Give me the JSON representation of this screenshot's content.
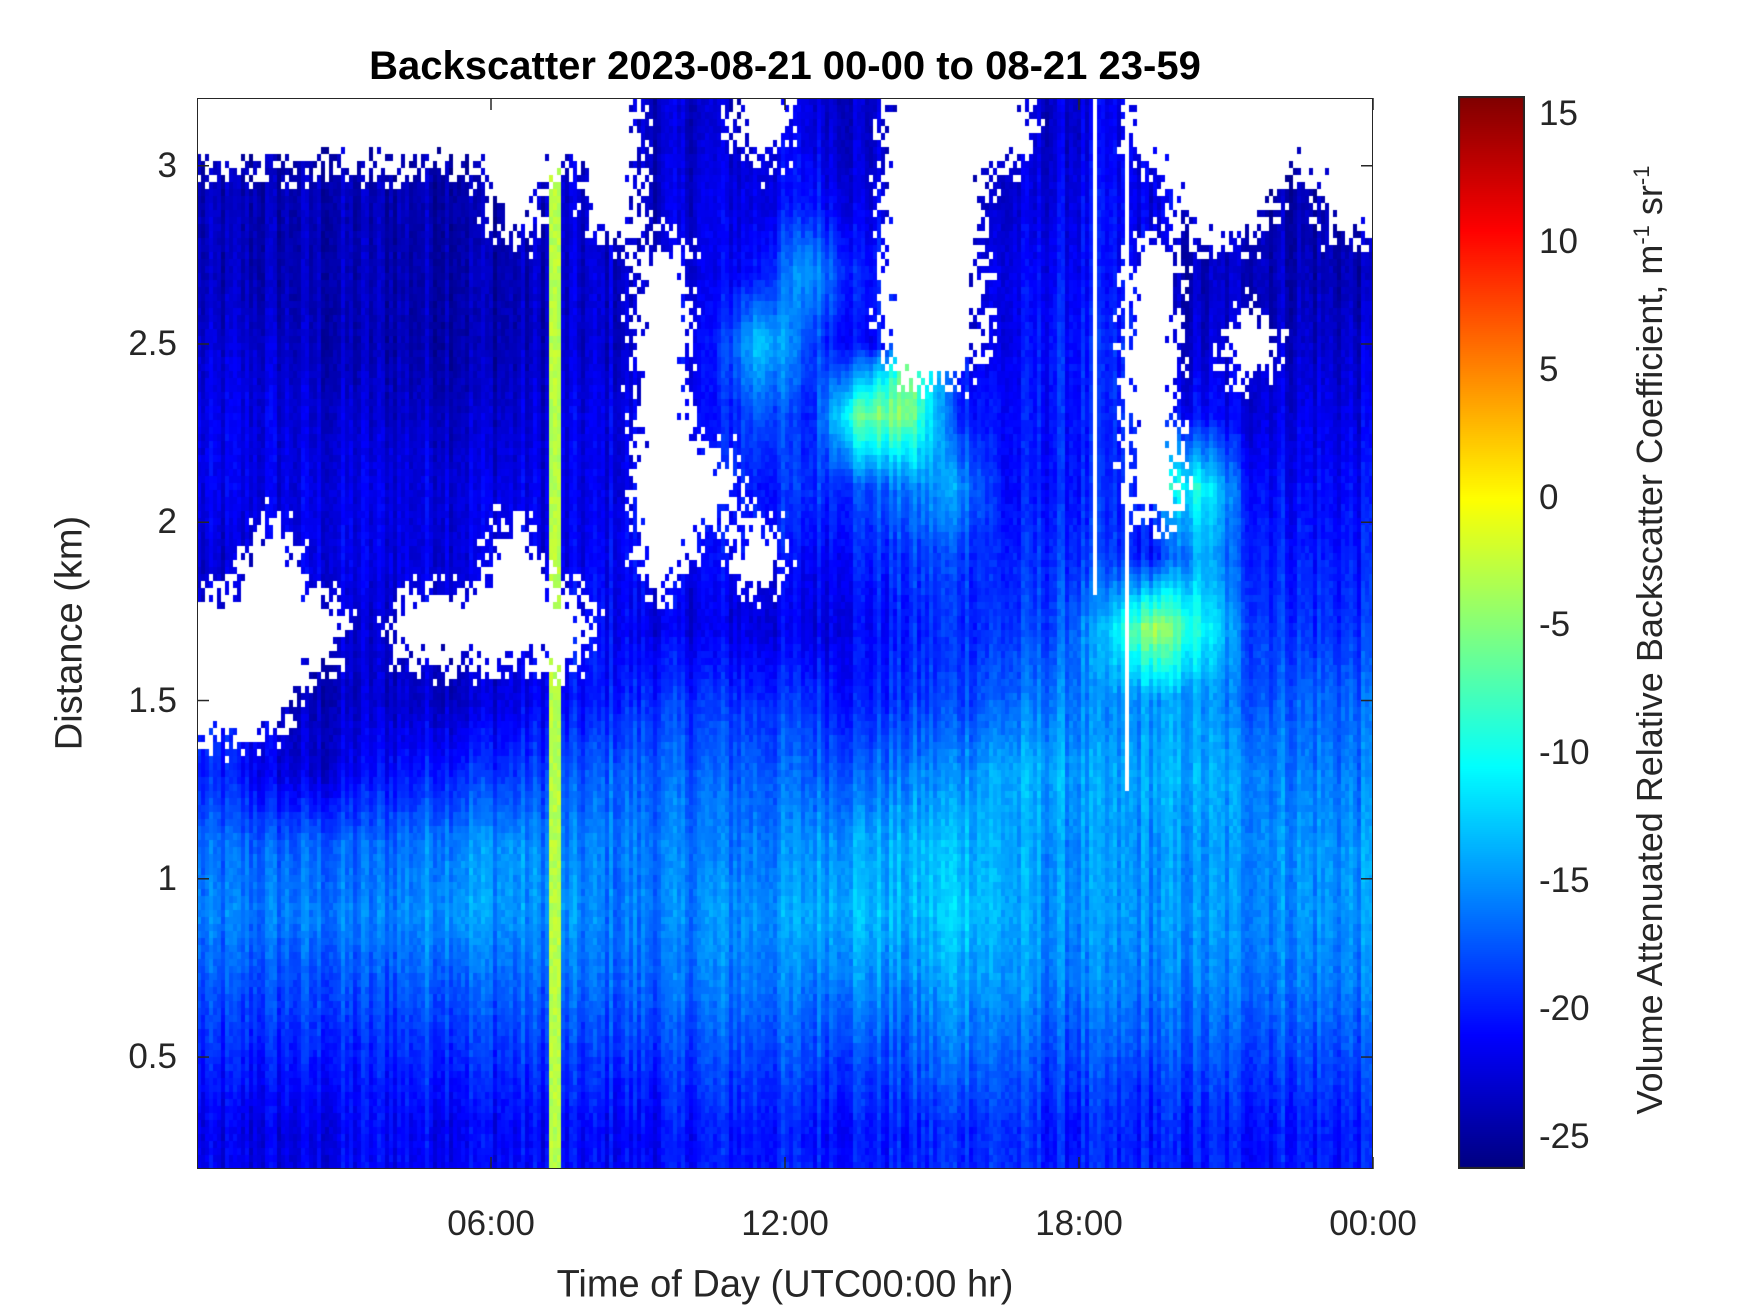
{
  "chart_data": {
    "type": "heatmap",
    "title": "Backscatter 2023-08-21 00-00 to 08-21 23-59",
    "xlabel": "Time of Day (UTC00:00 hr)",
    "ylabel": "Distance (km)",
    "colorbar_label": "Volume Attenuated Relative Backscatter Coefficient, m",
    "colorbar_unit_exp1": "-1",
    "colorbar_unit_mid": " sr",
    "colorbar_unit_exp2": "-1",
    "colormap": "jet",
    "xlim": [
      0,
      24
    ],
    "ylim": [
      0.186,
      3.19
    ],
    "clim": [
      -26.25,
      15.7
    ],
    "xticks": [
      6,
      12,
      18,
      24
    ],
    "xtick_labels": [
      "06:00",
      "12:00",
      "18:00",
      "00:00"
    ],
    "yticks": [
      0.5,
      1,
      1.5,
      2,
      2.5,
      3
    ],
    "ytick_labels": [
      "0.5",
      "1",
      "1.5",
      "2",
      "2.5",
      "3"
    ],
    "cticks": [
      -25,
      -20,
      -15,
      -10,
      -5,
      0,
      5,
      10,
      15
    ],
    "ctick_labels": [
      "-25",
      "-20",
      "-15",
      "-10",
      "-5",
      "0",
      "5",
      "10",
      "15"
    ],
    "grid": false,
    "note_null": "white = no data",
    "x_hours": [
      0.5,
      1.5,
      2.5,
      3.5,
      4.5,
      5.5,
      6.5,
      7.5,
      8.5,
      9.5,
      10.5,
      11.5,
      12.5,
      13.5,
      14.5,
      15.5,
      16.5,
      17.5,
      18.5,
      19.5,
      20.5,
      21.5,
      22.5,
      23.5
    ],
    "y_km": [
      3.1,
      2.9,
      2.7,
      2.5,
      2.3,
      2.1,
      1.9,
      1.7,
      1.5,
      1.3,
      1.1,
      0.9,
      0.7,
      0.5,
      0.3
    ],
    "values": [
      [
        null,
        null,
        null,
        null,
        null,
        null,
        null,
        null,
        null,
        -23,
        -23,
        null,
        -22,
        -23,
        null,
        null,
        null,
        -23,
        -22,
        null,
        null,
        null,
        null,
        null
      ],
      [
        -24,
        -24,
        -24,
        -24,
        -24,
        -24,
        null,
        -23,
        null,
        -23,
        -22,
        -22,
        -20,
        -22,
        null,
        null,
        -23,
        -22,
        -21,
        -22,
        null,
        null,
        -24,
        null
      ],
      [
        -24,
        -24,
        -24,
        -24,
        -24,
        -24,
        -24,
        -23,
        -23,
        null,
        -22,
        -20,
        -14,
        -20,
        null,
        null,
        -22,
        -21,
        -21,
        null,
        -24,
        -23,
        -24,
        -24
      ],
      [
        -23,
        -23,
        -24,
        -24,
        -24,
        -24,
        -24,
        -23,
        -23,
        null,
        -21,
        -12,
        -18,
        -21,
        null,
        null,
        -22,
        -20,
        -20,
        null,
        -23,
        null,
        -23,
        -23
      ],
      [
        -22,
        -22,
        -23,
        -23,
        -23,
        -23,
        -23,
        -22,
        -22,
        null,
        -21,
        -17,
        -20,
        -6,
        -5,
        -19,
        -21,
        -20,
        -20,
        null,
        -21,
        -22,
        -22,
        -22
      ],
      [
        -22,
        -22,
        -22,
        -22,
        -22,
        -22,
        -22,
        -22,
        -22,
        null,
        null,
        -20,
        -19,
        -18,
        -16,
        -14,
        -21,
        -20,
        -20,
        null,
        -10,
        -20,
        -21,
        -21
      ],
      [
        -23,
        null,
        -22,
        -22,
        -22,
        -22,
        null,
        -22,
        -21,
        null,
        -21,
        null,
        -21,
        -20,
        -19,
        -18,
        -20,
        -19,
        -19,
        -20,
        -14,
        -19,
        -20,
        -20
      ],
      [
        null,
        null,
        null,
        -23,
        null,
        null,
        null,
        null,
        -21,
        -22,
        -22,
        -22,
        -22,
        -21,
        -20,
        -19,
        -19,
        -18,
        -14,
        -3,
        -10,
        -18,
        -19,
        -19
      ],
      [
        null,
        null,
        -24,
        -23,
        -23,
        -23,
        -22,
        -21,
        -20,
        -19,
        -19,
        -19,
        -19,
        -20,
        -19,
        -18,
        -17,
        -16,
        -16,
        -15,
        -15,
        -17,
        -17,
        -17
      ],
      [
        -20,
        -22,
        -23,
        -21,
        -20,
        -19,
        -19,
        -18,
        -17,
        -17,
        -17,
        -17,
        -17,
        -17,
        -16,
        -15,
        -14,
        -14,
        -15,
        -14,
        -14,
        -15,
        -16,
        -16
      ],
      [
        -17,
        -17,
        -17,
        -17,
        -16,
        -15,
        -15,
        -16,
        -16,
        -16,
        -16,
        -16,
        -15,
        -14,
        -14,
        -13,
        -14,
        -15,
        -15,
        -15,
        -15,
        -15,
        -15,
        -15
      ],
      [
        -16,
        -16,
        -16,
        -16,
        -15,
        -14,
        -15,
        -15,
        -16,
        -16,
        -15,
        -15,
        -14,
        -13,
        -14,
        -12,
        -14,
        -15,
        -15,
        -15,
        -15,
        -15,
        -15,
        -15
      ],
      [
        -18,
        -18,
        -18,
        -18,
        -17,
        -17,
        -17,
        -17,
        -17,
        -17,
        -16,
        -16,
        -16,
        -15,
        -16,
        -14,
        -15,
        -16,
        -16,
        -16,
        -16,
        -16,
        -16,
        -16
      ],
      [
        -20,
        -20,
        -20,
        -20,
        -19,
        -19,
        -19,
        -19,
        -19,
        -19,
        -18,
        -18,
        -18,
        -18,
        -18,
        -16,
        -17,
        -18,
        -18,
        -18,
        -18,
        -18,
        -18,
        -18
      ],
      [
        -22,
        -22,
        -22,
        -21,
        -21,
        -21,
        -21,
        -21,
        -21,
        -21,
        -20,
        -20,
        -20,
        -20,
        -20,
        -19,
        -19,
        -20,
        -20,
        -20,
        -20,
        -20,
        -20,
        -20
      ]
    ],
    "features": [
      {
        "kind": "vertical_band",
        "x_hour": 7.3,
        "value": -3
      },
      {
        "kind": "vertical_gap",
        "x_hour": 18.3,
        "y_from_km": 1.8,
        "y_to_km": 3.19
      },
      {
        "kind": "vertical_gap",
        "x_hour": 19.0,
        "y_from_km": 1.25,
        "y_to_km": 3.19
      }
    ]
  }
}
